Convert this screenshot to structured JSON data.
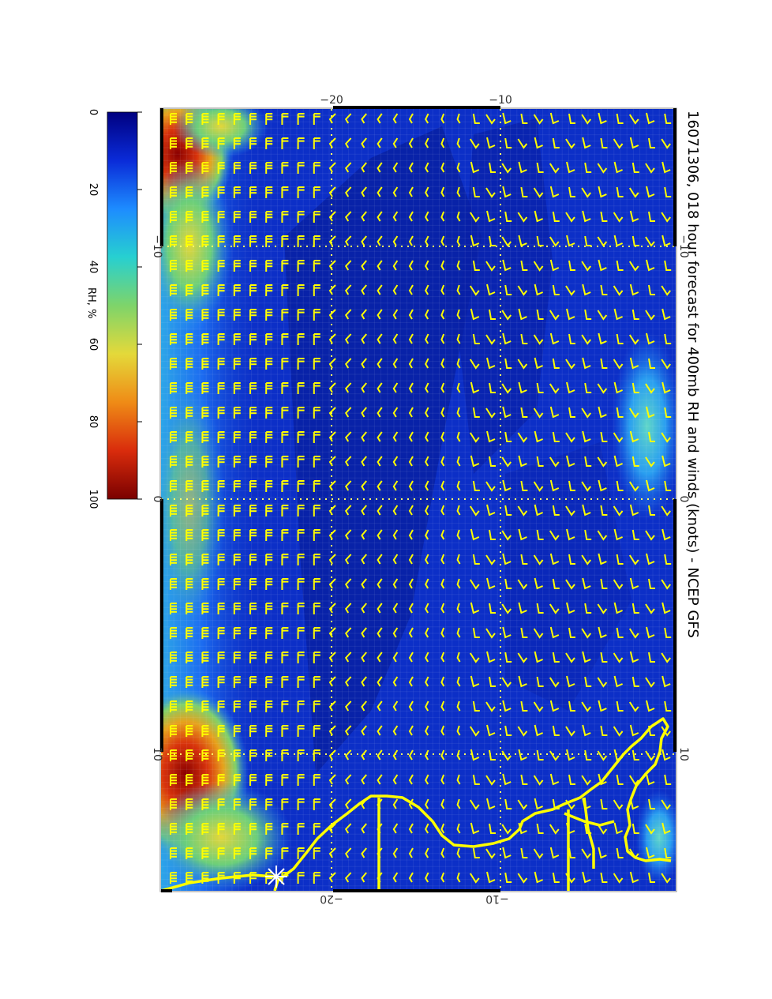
{
  "title": "16071306, 018 hour forecast for 400mb RH and winds (knots) - NCEP GFS",
  "colorbar": {
    "label": "RH, %",
    "ticks": [
      "0",
      "20",
      "40",
      "60",
      "80",
      "100"
    ],
    "stops": [
      "#000080",
      "#0a2bd8",
      "#1d8cff",
      "#27d0d0",
      "#7ed46a",
      "#e4d93a",
      "#ef8b16",
      "#d92c0c",
      "#7a0000"
    ]
  },
  "axes": {
    "top_ticks": [
      "−20",
      "−10"
    ],
    "bottom_ticks": [
      "−20",
      "−10"
    ],
    "left_ticks": [
      "−10",
      "0",
      "10"
    ],
    "right_ticks": [
      "−10",
      "0",
      "10"
    ]
  },
  "colors": {
    "barb": "#ffff00",
    "coast": "#ffff00",
    "grid": "#ffff66",
    "ocean": "#0c2fc7",
    "deep": "#061b9a"
  },
  "icons": {
    "marker": "asterisk-icon"
  }
}
